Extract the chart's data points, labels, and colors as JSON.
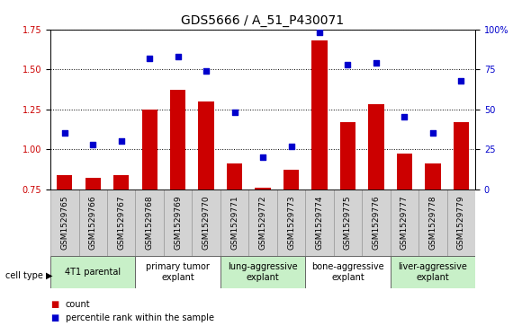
{
  "title": "GDS5666 / A_51_P430071",
  "samples": [
    "GSM1529765",
    "GSM1529766",
    "GSM1529767",
    "GSM1529768",
    "GSM1529769",
    "GSM1529770",
    "GSM1529771",
    "GSM1529772",
    "GSM1529773",
    "GSM1529774",
    "GSM1529775",
    "GSM1529776",
    "GSM1529777",
    "GSM1529778",
    "GSM1529779"
  ],
  "counts": [
    0.84,
    0.82,
    0.84,
    1.25,
    1.37,
    1.3,
    0.91,
    0.76,
    0.87,
    1.68,
    1.17,
    1.28,
    0.97,
    0.91,
    1.17
  ],
  "percentiles": [
    35,
    28,
    30,
    82,
    83,
    74,
    48,
    20,
    27,
    98,
    78,
    79,
    45,
    35,
    68
  ],
  "ylim_left": [
    0.75,
    1.75
  ],
  "ylim_right": [
    0,
    100
  ],
  "yticks_left": [
    0.75,
    1.0,
    1.25,
    1.5,
    1.75
  ],
  "yticks_right": [
    0,
    25,
    50,
    75,
    100
  ],
  "ytick_labels_right": [
    "0",
    "25",
    "50",
    "75",
    "100%"
  ],
  "bar_color": "#cc0000",
  "dot_color": "#0000cc",
  "grid_color": "#000000",
  "sample_bg_color": "#d3d3d3",
  "cell_types": [
    {
      "label": "4T1 parental",
      "start": 0,
      "end": 3,
      "color": "#c8f0c8"
    },
    {
      "label": "primary tumor\nexplant",
      "start": 3,
      "end": 6,
      "color": "#ffffff"
    },
    {
      "label": "lung-aggressive\nexplant",
      "start": 6,
      "end": 9,
      "color": "#c8f0c8"
    },
    {
      "label": "bone-aggressive\nexplant",
      "start": 9,
      "end": 12,
      "color": "#ffffff"
    },
    {
      "label": "liver-aggressive\nexplant",
      "start": 12,
      "end": 15,
      "color": "#c8f0c8"
    }
  ],
  "bar_color_left": "#cc0000",
  "dot_color_blue": "#0000cc",
  "title_fontsize": 10,
  "tick_fontsize": 7,
  "label_fontsize": 7,
  "bar_width": 0.55,
  "dot_size": 18,
  "legend_count_label": "count",
  "legend_pct_label": "percentile rank within the sample",
  "cell_type_label": "cell type"
}
